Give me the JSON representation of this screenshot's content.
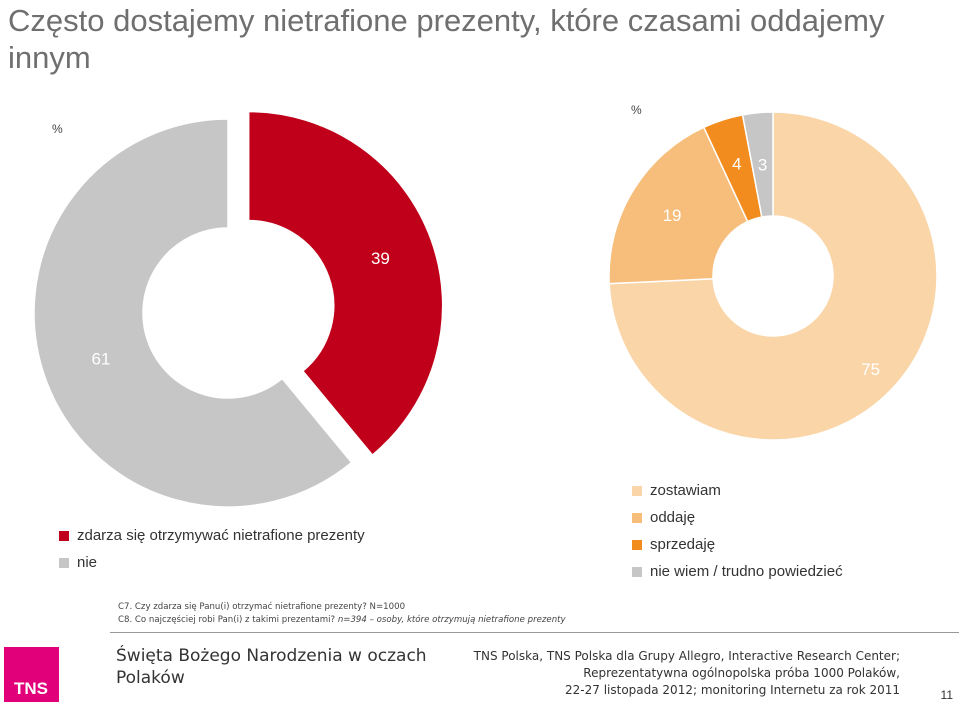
{
  "title": "Często dostajemy nietrafione prezenty, które czasami oddajemy innym",
  "chart_data": [
    {
      "type": "pie",
      "unit_label": "%",
      "slices": [
        {
          "label": "zdarza się otrzymywać nietrafione prezenty",
          "value": 39,
          "color": "#c0001a"
        },
        {
          "label": "nie",
          "value": 61,
          "color": "#c6c6c6"
        }
      ]
    },
    {
      "type": "pie",
      "unit_label": "%",
      "slices": [
        {
          "label": "zostawiam",
          "value": 75,
          "color": "#fad5a8"
        },
        {
          "label": "oddaję",
          "value": 19,
          "color": "#f7bd7b"
        },
        {
          "label": "sprzedaję",
          "value": 4,
          "color": "#f28c1e"
        },
        {
          "label": "nie wiem / trudno powiedzieć",
          "value": 3,
          "color": "#c6c6c6"
        }
      ]
    }
  ],
  "legend_left": [
    {
      "label": "zdarza się otrzymywać nietrafione prezenty",
      "color": "#c0001a"
    },
    {
      "label": "nie",
      "color": "#c6c6c6"
    }
  ],
  "legend_right": [
    {
      "label": "zostawiam",
      "color": "#fad5a8"
    },
    {
      "label": "oddaję",
      "color": "#f7bd7b"
    },
    {
      "label": "sprzedaję",
      "color": "#f28c1e"
    },
    {
      "label": "nie wiem / trudno powiedzieć",
      "color": "#c6c6c6"
    }
  ],
  "notes": {
    "line1": "C7. Czy zdarza się Panu(i) otrzymać nietrafione prezenty? N=1000",
    "line2_prefix": "C8. Co najczęściej robi Pan(i) z takimi prezentami? ",
    "line2_italic": "n=394 – osoby, które otrzymują nietrafione prezenty"
  },
  "footer": {
    "logo_text": "TNS",
    "report_title": "Święta Bożego Narodzenia w oczach Polaków",
    "source_line1": "TNS Polska, TNS Polska dla Grupy Allegro, Interactive Research Center;",
    "source_line2": "Reprezentatywna ogólnopolska próba 1000 Polaków,",
    "source_line3": "22-27 listopada 2012; monitoring Internetu za rok 2011",
    "page_number": "11"
  }
}
